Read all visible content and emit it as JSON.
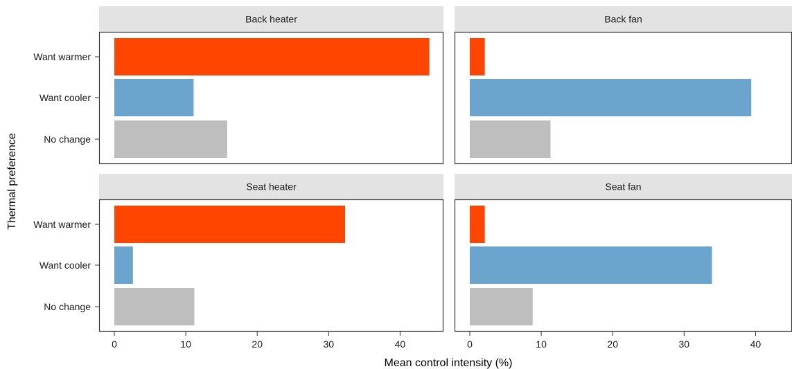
{
  "chart_data": {
    "type": "bar",
    "orientation": "horizontal",
    "facets": [
      "Back heater",
      "Back fan",
      "Seat heater",
      "Seat fan"
    ],
    "categories": [
      "Want warmer",
      "Want cooler",
      "No change"
    ],
    "xlabel": "Mean control intensity (%)",
    "ylabel": "Thermal preference",
    "xlim": [
      0,
      45
    ],
    "xticks": [
      0,
      10,
      20,
      30,
      40
    ],
    "xtick_labels": [
      "0",
      "10",
      "20",
      "30",
      "40"
    ],
    "colors": {
      "Want warmer": "#ff4500",
      "Want cooler": "#6ba4cd",
      "No change": "#bebebe"
    },
    "panels": [
      {
        "facet": "Back heater",
        "values": {
          "Want warmer": 44.1,
          "Want cooler": 11.1,
          "No change": 15.8
        }
      },
      {
        "facet": "Back fan",
        "values": {
          "Want warmer": 2.1,
          "Want cooler": 39.4,
          "No change": 11.3
        }
      },
      {
        "facet": "Seat heater",
        "values": {
          "Want warmer": 32.3,
          "Want cooler": 2.6,
          "No change": 11.2
        }
      },
      {
        "facet": "Seat fan",
        "values": {
          "Want warmer": 2.1,
          "Want cooler": 33.9,
          "No change": 8.8
        }
      }
    ],
    "grid": false,
    "legend": "none"
  }
}
